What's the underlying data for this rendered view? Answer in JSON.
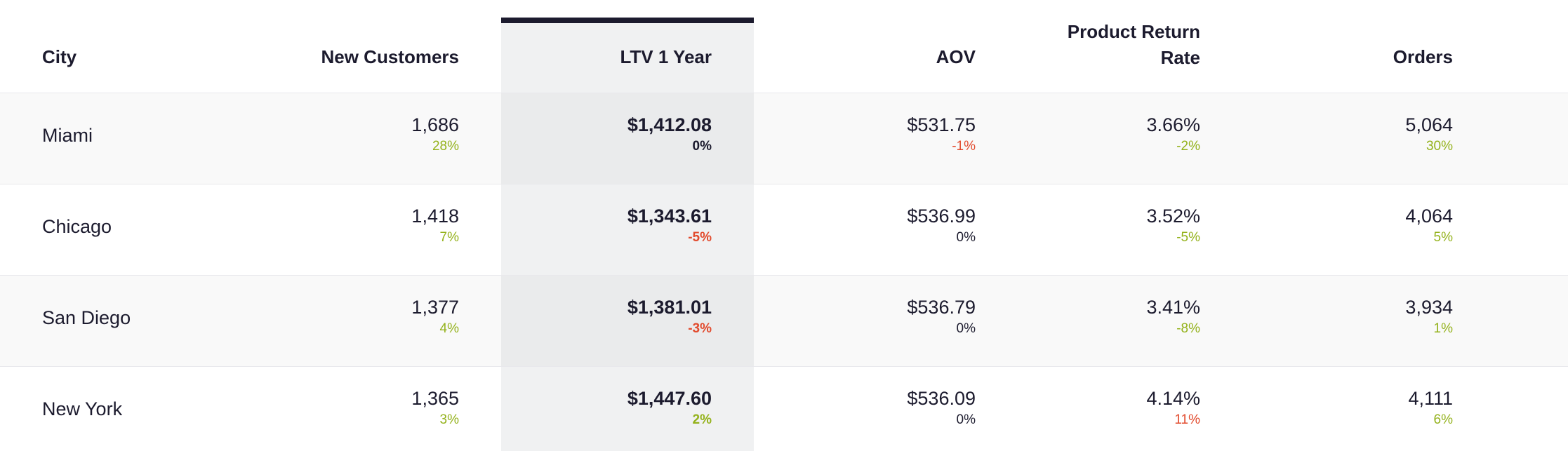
{
  "columns": {
    "city": "City",
    "new_customers": "New Customers",
    "ltv": "LTV 1 Year",
    "aov": "AOV",
    "return_rate_line1": "Product Return",
    "return_rate_line2": "Rate",
    "orders": "Orders"
  },
  "colors": {
    "positive": "#94b21c",
    "negative": "#e24b2e",
    "neutral": "#1c1b2e",
    "selected_column_bar": "#1c1b2e"
  },
  "rows": [
    {
      "city": "Miami",
      "new_customers": {
        "value": "1,686",
        "change": "28%",
        "tone": "pos"
      },
      "ltv": {
        "value": "$1,412.08",
        "change": "0%",
        "tone": "neu"
      },
      "aov": {
        "value": "$531.75",
        "change": "-1%",
        "tone": "neg"
      },
      "return_rate": {
        "value": "3.66%",
        "change": "-2%",
        "tone": "pos"
      },
      "orders": {
        "value": "5,064",
        "change": "30%",
        "tone": "pos"
      }
    },
    {
      "city": "Chicago",
      "new_customers": {
        "value": "1,418",
        "change": "7%",
        "tone": "pos"
      },
      "ltv": {
        "value": "$1,343.61",
        "change": "-5%",
        "tone": "neg"
      },
      "aov": {
        "value": "$536.99",
        "change": "0%",
        "tone": "neu"
      },
      "return_rate": {
        "value": "3.52%",
        "change": "-5%",
        "tone": "pos"
      },
      "orders": {
        "value": "4,064",
        "change": "5%",
        "tone": "pos"
      }
    },
    {
      "city": "San Diego",
      "new_customers": {
        "value": "1,377",
        "change": "4%",
        "tone": "pos"
      },
      "ltv": {
        "value": "$1,381.01",
        "change": "-3%",
        "tone": "neg"
      },
      "aov": {
        "value": "$536.79",
        "change": "0%",
        "tone": "neu"
      },
      "return_rate": {
        "value": "3.41%",
        "change": "-8%",
        "tone": "pos"
      },
      "orders": {
        "value": "3,934",
        "change": "1%",
        "tone": "pos"
      }
    },
    {
      "city": "New York",
      "new_customers": {
        "value": "1,365",
        "change": "3%",
        "tone": "pos"
      },
      "ltv": {
        "value": "$1,447.60",
        "change": "2%",
        "tone": "pos"
      },
      "aov": {
        "value": "$536.09",
        "change": "0%",
        "tone": "neu"
      },
      "return_rate": {
        "value": "4.14%",
        "change": "11%",
        "tone": "neg"
      },
      "orders": {
        "value": "4,111",
        "change": "6%",
        "tone": "pos"
      }
    }
  ]
}
